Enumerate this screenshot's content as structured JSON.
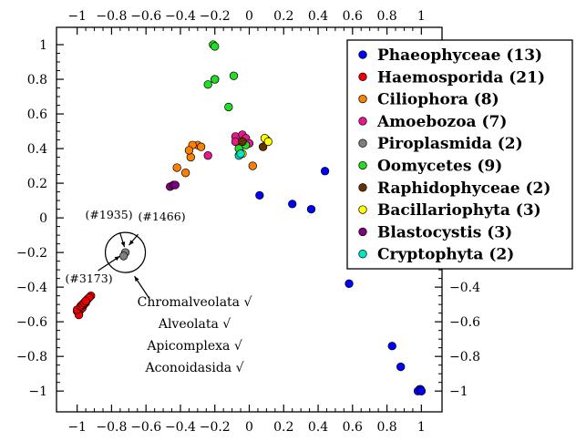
{
  "chart_data": {
    "type": "scatter",
    "title": "",
    "xlabel": "",
    "ylabel": "",
    "xlim": [
      -1.12,
      1.12
    ],
    "ylim": [
      -1.12,
      1.1
    ],
    "xticks": [
      -1,
      -0.8,
      -0.6,
      -0.4,
      -0.2,
      0,
      0.2,
      0.4,
      0.6,
      0.8,
      1
    ],
    "xtick_labels": [
      "−1",
      "−0.8",
      "−0.6",
      "−0.4",
      "−0.2",
      "0",
      "0.2",
      "0.4",
      "0.6",
      "0.8",
      "1"
    ],
    "yticks": [
      1,
      0.8,
      0.6,
      0.4,
      0.2,
      0,
      -0.2,
      -0.4,
      -0.6,
      -0.8,
      -1
    ],
    "ytick_labels": [
      "1",
      "0.8",
      "0.6",
      "0.4",
      "0.2",
      "0",
      "−0.2",
      "−0.4",
      "−0.6",
      "−0.8",
      "−1"
    ],
    "grid": false,
    "legend_position": "top-right",
    "series": [
      {
        "name": "Phaeophyceae (13)",
        "color": "#0000ff",
        "x": [
          0.44,
          0.06,
          0.25,
          0.36,
          0.58,
          0.83,
          0.88,
          0.99,
          1.0,
          0.99,
          0.98,
          0.995,
          1.0
        ],
        "y": [
          0.27,
          0.13,
          0.08,
          0.05,
          -0.38,
          -0.74,
          -0.86,
          -0.99,
          -1.0,
          -0.995,
          -1.0,
          -0.99,
          -1.0
        ]
      },
      {
        "name": "Haemosporida (21)",
        "color": "#ee0000",
        "x": [
          -0.92,
          -0.94,
          -0.95,
          -0.96,
          -0.97,
          -0.98,
          -0.99,
          -1.0,
          -0.99,
          -0.98,
          -0.97,
          -0.96,
          -0.95,
          -0.94,
          -0.93,
          -0.99,
          -1.0,
          -0.98,
          -0.97,
          -0.96,
          -0.95
        ],
        "y": [
          -0.45,
          -0.47,
          -0.49,
          -0.5,
          -0.51,
          -0.52,
          -0.53,
          -0.54,
          -0.55,
          -0.53,
          -0.52,
          -0.5,
          -0.48,
          -0.47,
          -0.46,
          -0.56,
          -0.53,
          -0.51,
          -0.5,
          -0.49,
          -0.48
        ]
      },
      {
        "name": "Ciliophora (8)",
        "color": "#ff8000",
        "x": [
          -0.42,
          -0.37,
          -0.34,
          -0.3,
          -0.33,
          -0.35,
          -0.28,
          0.02
        ],
        "y": [
          0.29,
          0.26,
          0.35,
          0.42,
          0.42,
          0.39,
          0.41,
          0.3
        ]
      },
      {
        "name": "Amoebozoa (7)",
        "color": "#e6198c",
        "x": [
          -0.24,
          -0.08,
          -0.08,
          -0.04,
          -0.02,
          0.0,
          0.1
        ],
        "y": [
          0.36,
          0.47,
          0.44,
          0.48,
          0.46,
          0.43,
          0.45
        ]
      },
      {
        "name": "Piroplasmida (2)",
        "color": "#808080",
        "x": [
          -0.72,
          -0.73
        ],
        "y": [
          -0.2,
          -0.22
        ]
      },
      {
        "name": "Oomycetes (9)",
        "color": "#22dd22",
        "x": [
          -0.21,
          -0.2,
          -0.2,
          -0.24,
          -0.2,
          -0.12,
          -0.09,
          -0.06,
          -0.02
        ],
        "y": [
          1.0,
          0.99,
          0.8,
          0.77,
          0.8,
          0.64,
          0.82,
          0.4,
          0.42
        ]
      },
      {
        "name": "Raphidophyceae (2)",
        "color": "#663300",
        "x": [
          -0.04,
          0.08
        ],
        "y": [
          0.44,
          0.41
        ]
      },
      {
        "name": "Bacillariophyta (3)",
        "color": "#ffff00",
        "x": [
          -0.04,
          0.09,
          0.11
        ],
        "y": [
          0.37,
          0.46,
          0.44
        ]
      },
      {
        "name": "Blastocystis (3)",
        "color": "#800080",
        "x": [
          -0.46,
          -0.44,
          -0.43
        ],
        "y": [
          0.18,
          0.19,
          0.19
        ]
      },
      {
        "name": "Cryptophyta (2)",
        "color": "#00e6c8",
        "x": [
          -0.06,
          -0.05
        ],
        "y": [
          0.36,
          0.37
        ]
      }
    ],
    "annotations": {
      "ids": [
        "(#1935)",
        "(#1466)",
        "(#3173)"
      ],
      "taxonomy": [
        "Chromalveolata √",
        "Alveolata √",
        "Apicomplexa √",
        "Aconoidasida √"
      ],
      "circle_center": [
        -0.72,
        -0.2
      ]
    }
  }
}
